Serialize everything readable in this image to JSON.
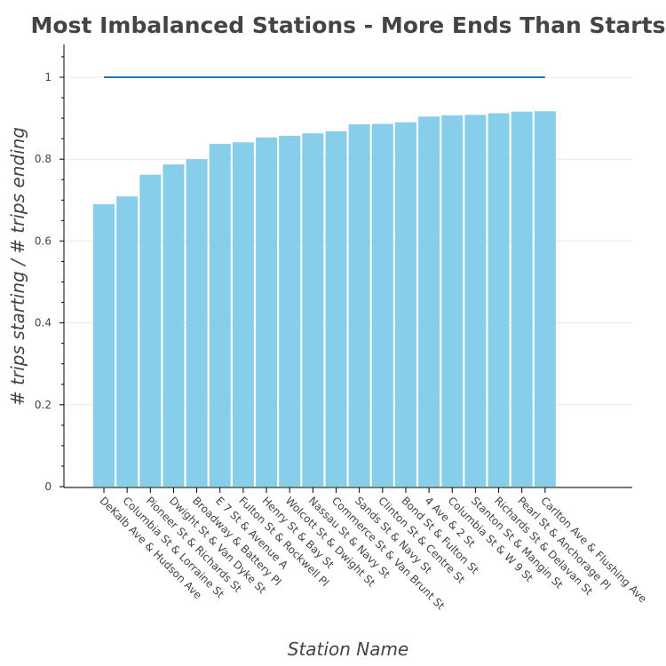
{
  "chart_data": {
    "type": "bar",
    "title": "Most Imbalanced Stations - More Ends Than Starts",
    "xlabel": "Station Name",
    "ylabel": "# trips starting / # trips ending",
    "categories": [
      "DeKalb Ave & Hudson Ave",
      "Columbia St & Lorraine St",
      "Pioneer St & Richards St",
      "Dwight St & Van Dyke St",
      "Broadway & Battery Pl",
      "E 7 St & Avenue A",
      "Fulton St & Rockwell Pl",
      "Henry St & Bay St",
      "Wolcott St & Dwight St",
      "Nassau St & Navy St",
      "Commerce St & Van Brunt St",
      "Sands St & Navy St",
      "Clinton St & Centre St",
      "Bond St & Fulton St",
      "4 Ave & 2 St",
      "Columbia St & W 9 St",
      "Stanton St & Mangin St",
      "Richards St & Delavan St",
      "Pearl St & Anchorage Pl",
      "Carlton Ave & Flushing Ave"
    ],
    "values": [
      0.69,
      0.709,
      0.762,
      0.787,
      0.8,
      0.837,
      0.841,
      0.853,
      0.857,
      0.863,
      0.868,
      0.885,
      0.886,
      0.89,
      0.904,
      0.907,
      0.908,
      0.912,
      0.916,
      0.917
    ],
    "reference_line": {
      "value": 1.0,
      "color": "#1f77b4"
    },
    "ylim": [
      0,
      1.08
    ],
    "yticks": [
      "0",
      "0.2",
      "0.4",
      "0.6",
      "0.8",
      "1"
    ],
    "ytick_values": [
      0,
      0.2,
      0.4,
      0.6,
      0.8,
      1.0
    ],
    "grid": true,
    "legend": "none",
    "bar_color": "#87ceeb"
  }
}
